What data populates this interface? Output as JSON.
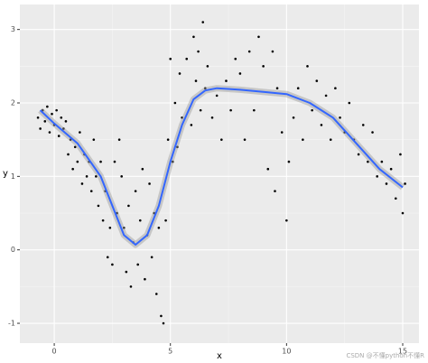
{
  "chart_data": {
    "type": "scatter",
    "x_label": "x",
    "y_label": "y",
    "watermark": "CSDN @不懂python不懂R",
    "xlim": [
      -1.48,
      15.7
    ],
    "ylim": [
      -1.27,
      3.34
    ],
    "xticks": [
      0,
      5,
      10,
      15
    ],
    "yticks": [
      -1,
      0,
      1,
      2,
      3
    ],
    "grid": true,
    "color": "#000000",
    "x": [
      -0.7,
      -0.6,
      -0.5,
      -0.4,
      -0.3,
      -0.2,
      -0.1,
      0,
      0.1,
      0.2,
      0.3,
      0.4,
      0.5,
      0.6,
      0.7,
      0.8,
      0.9,
      1.0,
      1.1,
      1.2,
      1.3,
      1.4,
      1.5,
      1.6,
      1.7,
      1.8,
      1.9,
      2.0,
      2.1,
      2.2,
      2.3,
      2.4,
      2.5,
      2.6,
      2.7,
      2.8,
      2.9,
      3.0,
      3.1,
      3.2,
      3.3,
      3.4,
      3.5,
      3.6,
      3.7,
      3.8,
      3.9,
      4.0,
      4.1,
      4.2,
      4.3,
      4.4,
      4.5,
      4.6,
      4.7,
      4.8,
      4.9,
      5.0,
      5.1,
      5.2,
      5.3,
      5.4,
      5.5,
      5.7,
      5.9,
      6.0,
      6.1,
      6.2,
      6.3,
      6.4,
      6.5,
      6.6,
      6.8,
      7.0,
      7.2,
      7.4,
      7.6,
      7.8,
      8.0,
      8.2,
      8.4,
      8.6,
      8.8,
      9.0,
      9.2,
      9.4,
      9.5,
      9.6,
      9.8,
      10.0,
      10.1,
      10.3,
      10.5,
      10.7,
      10.9,
      11.1,
      11.3,
      11.5,
      11.7,
      11.9,
      12.1,
      12.3,
      12.5,
      12.7,
      12.9,
      13.1,
      13.3,
      13.5,
      13.7,
      13.9,
      14.1,
      14.3,
      14.5,
      14.7,
      14.9,
      15.0,
      15.1
    ],
    "values": [
      1.8,
      1.65,
      1.9,
      1.75,
      1.95,
      1.6,
      1.85,
      1.7,
      1.9,
      1.55,
      1.8,
      1.65,
      1.75,
      1.3,
      1.5,
      1.1,
      1.4,
      1.2,
      1.6,
      0.9,
      1.3,
      1.0,
      1.2,
      0.8,
      1.5,
      1.0,
      0.6,
      1.2,
      0.4,
      0.8,
      -0.1,
      0.3,
      -0.2,
      1.2,
      0.5,
      1.5,
      1.0,
      0.3,
      -0.3,
      0.6,
      -0.5,
      0.1,
      0.8,
      -0.2,
      0.4,
      1.1,
      -0.4,
      0.2,
      0.9,
      -0.1,
      0.5,
      -0.6,
      0.3,
      -0.9,
      -1.0,
      0.4,
      1.5,
      2.6,
      1.2,
      2.0,
      1.4,
      2.4,
      1.8,
      2.6,
      1.7,
      2.9,
      2.3,
      2.7,
      1.9,
      3.1,
      2.2,
      2.5,
      1.8,
      2.1,
      1.5,
      2.3,
      1.9,
      2.6,
      2.4,
      1.5,
      2.7,
      1.9,
      2.9,
      2.5,
      1.1,
      2.7,
      0.8,
      2.2,
      1.6,
      0.4,
      1.2,
      1.8,
      2.2,
      1.5,
      2.5,
      1.9,
      2.3,
      1.7,
      2.1,
      1.5,
      2.2,
      1.8,
      1.6,
      2.0,
      1.5,
      1.3,
      1.7,
      1.2,
      1.6,
      1.0,
      1.2,
      0.9,
      1.1,
      0.7,
      1.3,
      0.5,
      0.9
    ],
    "smooth": {
      "color": "#3366ff",
      "x": [
        -0.6,
        0,
        1,
        2,
        2.5,
        3,
        3.5,
        4,
        4.5,
        5,
        5.5,
        6,
        6.5,
        7,
        8,
        9,
        10,
        11,
        12,
        13,
        14,
        15
      ],
      "values": [
        1.9,
        1.72,
        1.45,
        1.0,
        0.6,
        0.2,
        0.07,
        0.2,
        0.6,
        1.2,
        1.7,
        2.05,
        2.17,
        2.2,
        2.18,
        2.15,
        2.12,
        2.0,
        1.8,
        1.45,
        1.1,
        0.85
      ]
    }
  }
}
